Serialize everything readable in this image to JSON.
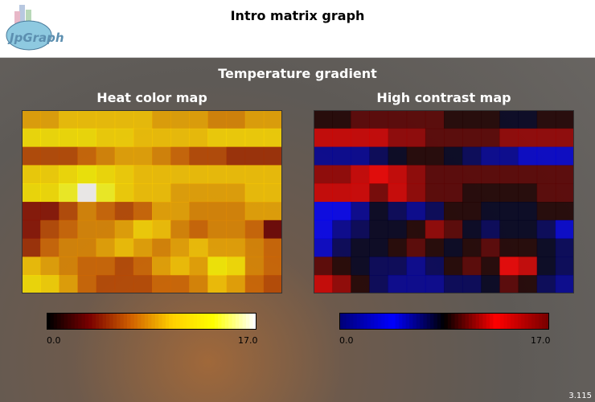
{
  "header": {
    "title": "Intro matrix graph",
    "logo_text": "JpGraph"
  },
  "subtitle": "Temperature gradient",
  "version": "3.115",
  "chart_data": [
    {
      "type": "heatmap",
      "title": "Heat color map",
      "colormap": "heat",
      "range": [
        0,
        17
      ],
      "legend": {
        "min_label": "0.0",
        "max_label": "17.0",
        "placement": "bottom"
      },
      "colors": [
        "#000000",
        "#7a0000",
        "#d06000",
        "#ffd000",
        "#ffff00",
        "#ffffff"
      ]
    },
    {
      "type": "heatmap",
      "title": "High contrast map",
      "colormap": "high-contrast",
      "range": [
        0,
        17
      ],
      "legend": {
        "min_label": "0.0",
        "max_label": "17.0",
        "placement": "bottom"
      },
      "colors": [
        "#00007a",
        "#0000ff",
        "#000000",
        "#ff0000",
        "#7a0000"
      ]
    }
  ],
  "matrix": [
    [
      9,
      9,
      10,
      10,
      10,
      10,
      10,
      9,
      9,
      9,
      8,
      8,
      9,
      9
    ],
    [
      12,
      12,
      12,
      12,
      11,
      11,
      10,
      10,
      10,
      10,
      11,
      11,
      11,
      11
    ],
    [
      6,
      6,
      6,
      7,
      8,
      9,
      9,
      8,
      7,
      6,
      6,
      5,
      5,
      5
    ],
    [
      11,
      11,
      12,
      13,
      12,
      11,
      10,
      10,
      10,
      10,
      10,
      10,
      10,
      10
    ],
    [
      12,
      12,
      14,
      17,
      14,
      11,
      10,
      10,
      9,
      9,
      9,
      9,
      10,
      10
    ],
    [
      4,
      4,
      6,
      8,
      7,
      6,
      7,
      9,
      9,
      8,
      8,
      8,
      9,
      9
    ],
    [
      4,
      6,
      7,
      8,
      8,
      9,
      11,
      10,
      8,
      7,
      8,
      8,
      7,
      3
    ],
    [
      5,
      7,
      8,
      8,
      9,
      10,
      9,
      8,
      9,
      10,
      9,
      9,
      8,
      7
    ],
    [
      10,
      9,
      8,
      7,
      7,
      6,
      7,
      9,
      10,
      9,
      13,
      12,
      8,
      7
    ],
    [
      12,
      11,
      9,
      7,
      6,
      6,
      6,
      7,
      7,
      8,
      10,
      9,
      7,
      6
    ]
  ]
}
